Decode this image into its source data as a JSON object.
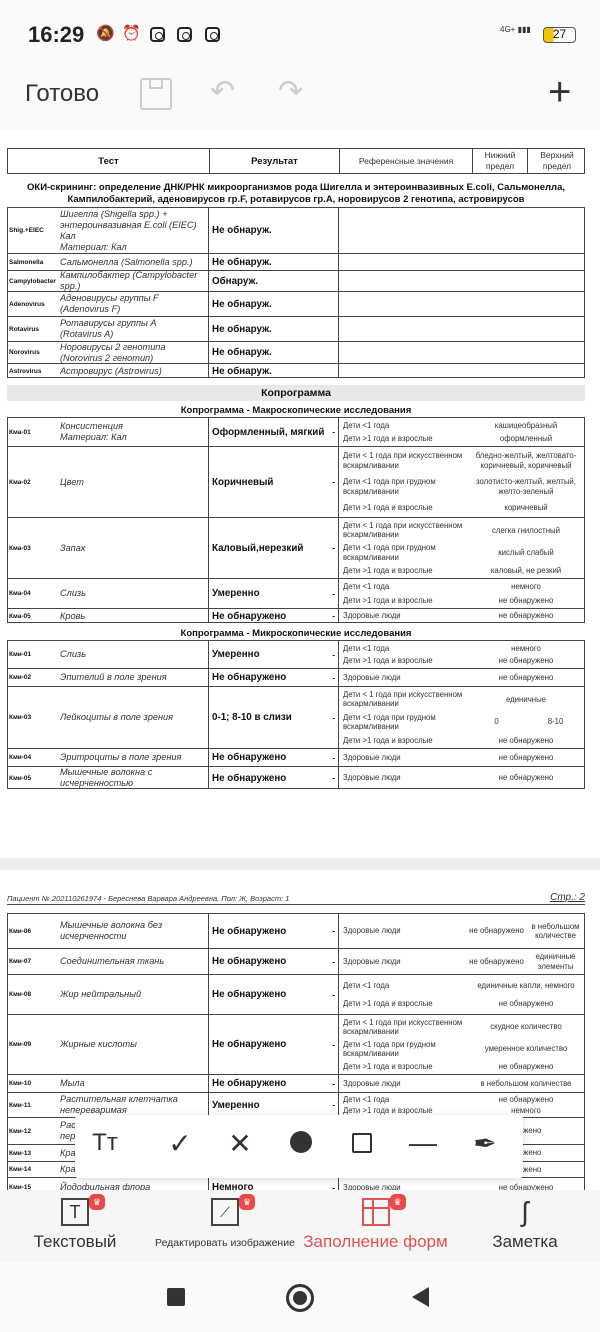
{
  "status_bar": {
    "time": "16:29",
    "network": "4G+",
    "battery": "27",
    "icons": [
      "bell-off-icon",
      "alarm-icon",
      "instagram-icon",
      "instagram-icon",
      "instagram-icon"
    ]
  },
  "appbar": {
    "done": "Готово",
    "icons": [
      "save-icon",
      "undo-icon",
      "redo-icon",
      "plus-icon"
    ]
  },
  "header": {
    "test": "Тест",
    "result": "Результат",
    "ref": "Референсные значения",
    "lower": "Нижний предел",
    "upper": "Верхний предел"
  },
  "oki": {
    "title": "ОКИ-скрининг: определение ДНК/РНК микроорганизмов рода Шигелла и энтероинвазивных E.coli, Сальмонелла, Кампилобактерий, аденовирусов гр.F, ротавирусов гр.А, норовирусов 2 генотипа, астровирусов",
    "rows": [
      {
        "code": "Shig.+EIEC",
        "name": "Шигелла (Shigella spp.) +\nэнтероинвазивная E.coli (EIEC)\nКал\nМатериал: Кал",
        "result": "Не обнаруж."
      },
      {
        "code": "Salmonella",
        "name": "Сальмонелла (Salmonella spp.)",
        "result": "Не обнаруж."
      },
      {
        "code": "Campylobacter",
        "name": "Кампилобактер (Campylobacter\nspp.)",
        "result": "Обнаруж."
      },
      {
        "code": "Adenovirus",
        "name": "Аденовирусы группы F\n(Adenovirus F)",
        "result": "Не обнаруж."
      },
      {
        "code": "Rotavirus",
        "name": "Ротавирусы группы A\n(Rotavirus A)",
        "result": "Не обнаруж."
      },
      {
        "code": "Norovirus",
        "name": "Норовирусы 2 генотипа\n(Norovirus 2 генотип)",
        "result": "Не обнаруж."
      },
      {
        "code": "Astrovirus",
        "name": "Астровирус  (Astrovirus)",
        "result": "Не обнаруж."
      }
    ]
  },
  "coprogram_title": "Копрограмма",
  "macro": {
    "title": "Копрограмма - Макроскопические исследования",
    "rows": [
      {
        "code": "Кма-01",
        "name": "Консистенция\nМатериал: Кал",
        "result": "Оформленный, мягкий",
        "dash": "-",
        "refs": [
          {
            "label": "Дети <1 года",
            "value": "кашицеобразный"
          },
          {
            "label": "Дети >1 года и взрослые",
            "value": "оформленный"
          }
        ]
      },
      {
        "code": "Кма-02",
        "name": "Цвет",
        "result": "Коричневый",
        "dash": "-",
        "refs": [
          {
            "label": "Дети < 1 года при искусственном вскармливании",
            "value": "бледно-желтый, желтовато-коричневый, коричневый"
          },
          {
            "label": "Дети <1 года при грудном вскармливании",
            "value": "золотисто-желтый, желтый, желто-зеленый"
          },
          {
            "label": "Дети >1 года и взрослые",
            "value": "коричневый"
          }
        ]
      },
      {
        "code": "Кма-03",
        "name": "Запах",
        "result": "Каловый,нерезкий",
        "dash": "-",
        "refs": [
          {
            "label": "Дети < 1 года при искусственном вскармливании",
            "value": "слегка гнилостный"
          },
          {
            "label": "Дети <1 года при грудном вскармливании",
            "value": "кислый слабый"
          },
          {
            "label": "Дети >1 года и взрослые",
            "value": "каловый, не резкий"
          }
        ]
      },
      {
        "code": "Кма-04",
        "name": "Слизь",
        "result": "Умеренно",
        "dash": "-",
        "refs": [
          {
            "label": "Дети <1 года",
            "value": "немного"
          },
          {
            "label": "Дети >1 года и взрослые",
            "value": "не обнаружено"
          }
        ]
      },
      {
        "code": "Кма-05",
        "name": "Кровь",
        "result": "Не обнаружено",
        "dash": "-",
        "refs": [
          {
            "label": "Здоровые люди",
            "value": "не обнаружено"
          }
        ]
      }
    ]
  },
  "micro": {
    "title": "Копрограмма - Микроскопические исследования",
    "rows": [
      {
        "code": "Кми-01",
        "name": "Слизь",
        "result": "Умеренно",
        "dash": "-",
        "refs": [
          {
            "label": "Дети <1 года",
            "value": "немного"
          },
          {
            "label": "Дети >1 года и взрослые",
            "value": "не обнаружено"
          }
        ]
      },
      {
        "code": "Кми-02",
        "name": "Эпителий в поле зрения",
        "result": "Не обнаружено",
        "dash": "-",
        "refs": [
          {
            "label": "Здоровые люди",
            "value": "не обнаружено"
          }
        ]
      },
      {
        "code": "Кми-03",
        "name": "Лейкоциты в поле зрения",
        "result": "0-1; 8-10 в слизи",
        "dash": "-",
        "refs": [
          {
            "label": "Дети < 1 года при искусственном вскармливании",
            "value": "единичные"
          },
          {
            "label": "Дети <1 года при грудном вскармливании",
            "lower": "0",
            "upper": "8-10"
          },
          {
            "label": "Дети >1 года и взрослые",
            "value": "не обнаружено"
          }
        ]
      },
      {
        "code": "Кми-04",
        "name": "Эритроциты в поле зрения",
        "result": "Не обнаружено",
        "dash": "-",
        "refs": [
          {
            "label": "Здоровые люди",
            "value": "не обнаружено"
          }
        ]
      },
      {
        "code": "Кми-05",
        "name": "Мышечные волокна с\nисчерченностью",
        "result": "Не обнаружено",
        "dash": "-",
        "refs": [
          {
            "label": "Здоровые люди",
            "value": "не обнаружено"
          }
        ]
      }
    ]
  },
  "page2": {
    "patient": "Пациент № 202110261974 - Береснева Варвара Андреевна, Пол: Ж, Возраст: 1",
    "page": "Стр.: 2",
    "rows": [
      {
        "code": "Кми-06",
        "name": "Мышечные волокна без\nисчерченности",
        "result": "Не обнаружено",
        "dash": "-",
        "refs": [
          {
            "label": "Здоровые люди",
            "lower": "не обнаружено",
            "upper": "в небольшом количестве"
          }
        ]
      },
      {
        "code": "Кми-07",
        "name": "Соединительная ткань",
        "result": "Не обнаружено",
        "dash": "-",
        "refs": [
          {
            "label": "Здоровые люди",
            "lower": "не обнаружено",
            "upper": "единичные элементы"
          }
        ]
      },
      {
        "code": "Кми-08",
        "name": "Жир нейтральный",
        "result": "Не обнаружено",
        "dash": "-",
        "refs": [
          {
            "label": "Дети <1 года",
            "value": "единичные капли, немного"
          },
          {
            "label": "Дети >1 года и взрослые",
            "value": "не обнаружено"
          }
        ]
      },
      {
        "code": "Кми-09",
        "name": "Жирные кислоты",
        "result": "Не обнаружено",
        "dash": "-",
        "refs": [
          {
            "label": "Дети < 1 года при искусственном вскармливании",
            "value": "скудное количество"
          },
          {
            "label": "Дети <1 года при грудном вскармливании",
            "value": "умеренное количество"
          },
          {
            "label": "Дети >1 года и взрослые",
            "value": "не обнаружено"
          }
        ]
      },
      {
        "code": "Кми-10",
        "name": "Мыла",
        "result": "Не обнаружено",
        "dash": "-",
        "refs": [
          {
            "label": "Здоровые люди",
            "value": "в небольшом количестве"
          }
        ]
      },
      {
        "code": "Кми-11",
        "name": "Растительная клетчатка\nнепереваримая",
        "result": "Умеренно",
        "dash": "-",
        "refs": [
          {
            "label": "Дети <1 года",
            "value": "не обнаружено"
          },
          {
            "label": "Дети >1 года и взрослые",
            "value": "немного"
          }
        ]
      },
      {
        "code": "Кми-12",
        "name": "Рас\nпер",
        "result": "",
        "dash": "",
        "refs": [
          {
            "label": "",
            "value": "аружено"
          }
        ]
      },
      {
        "code": "Кми-13",
        "name": "Кра",
        "result": "",
        "dash": "",
        "refs": [
          {
            "label": "",
            "value": "аружено"
          }
        ]
      },
      {
        "code": "Кми-14",
        "name": "Кра",
        "result": "",
        "dash": "",
        "refs": [
          {
            "label": "",
            "value": "аружено"
          }
        ]
      },
      {
        "code": "Кми-15",
        "name": "Йодофильная флора",
        "result": "Немного",
        "dash": "-",
        "refs": [
          {
            "label": "Здоровые люди",
            "value": "не обнаружено"
          }
        ]
      }
    ]
  },
  "toolbar": {
    "tools": [
      "text-size-icon",
      "check-icon",
      "cross-icon",
      "dot-icon",
      "square-icon",
      "line-icon",
      "pen-icon"
    ],
    "text_glyph": "Tт"
  },
  "bottom_nav": {
    "items": [
      {
        "label": "Текстовый",
        "active": false
      },
      {
        "label": "Редактировать изображение",
        "active": false
      },
      {
        "label": "Заполнение форм",
        "active": true
      },
      {
        "label": "Заметка",
        "active": false
      }
    ],
    "accent": "#e05252"
  }
}
